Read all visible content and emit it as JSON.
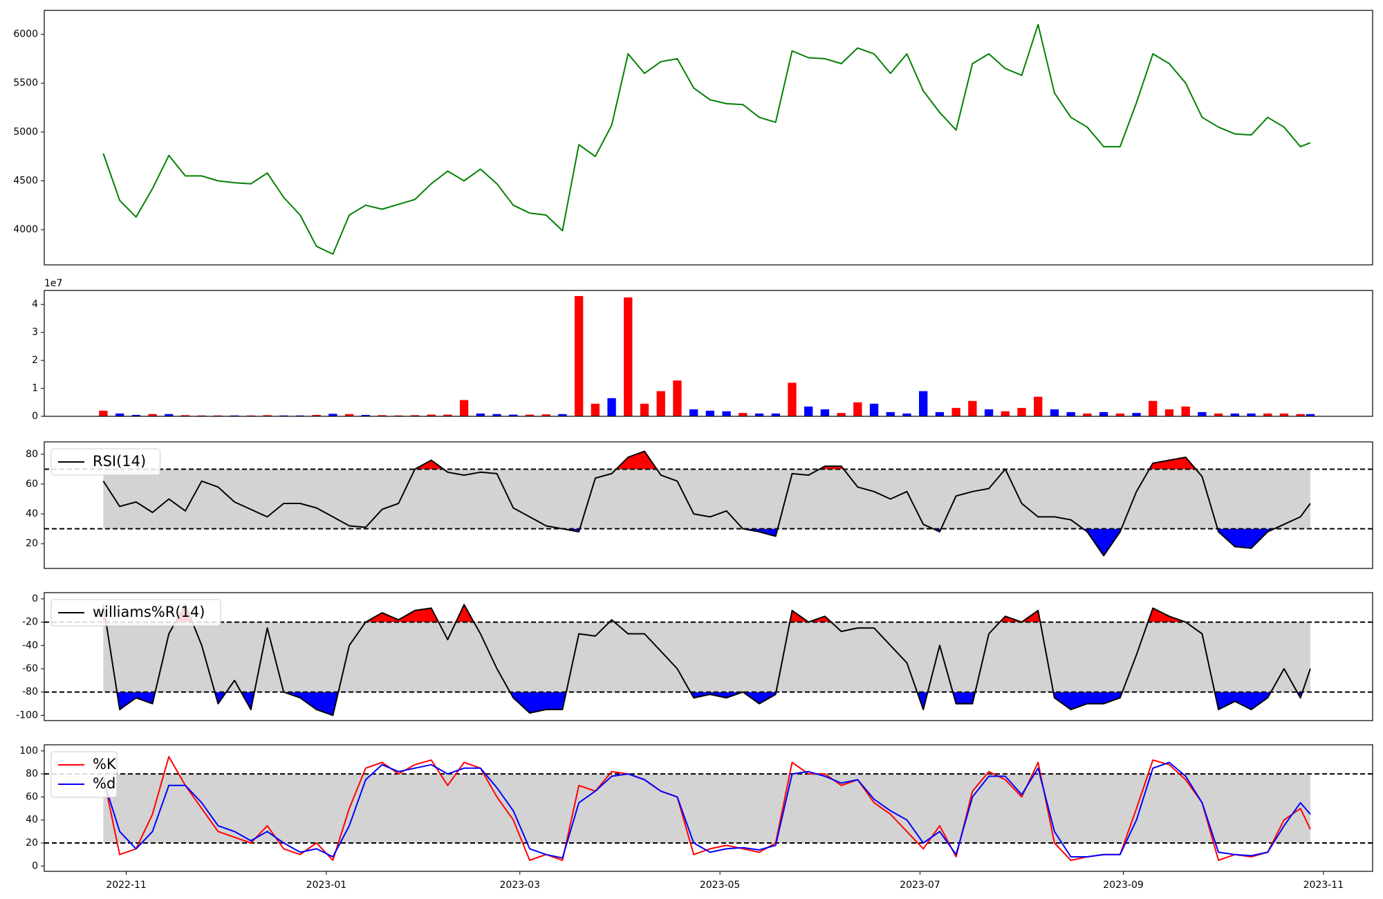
{
  "chart_data": [
    {
      "type": "line",
      "x": [
        19290,
        19295,
        19300,
        19305,
        19310,
        19315,
        19320,
        19325,
        19330,
        19335,
        19340,
        19345,
        19350,
        19355,
        19360,
        19365,
        19370,
        19375,
        19380,
        19385,
        19390,
        19395,
        19400,
        19405,
        19410,
        19415,
        19420,
        19425,
        19430,
        19435,
        19440,
        19445,
        19450,
        19455,
        19460,
        19465,
        19470,
        19475,
        19480,
        19485,
        19490,
        19495,
        19500,
        19505,
        19510,
        19515,
        19520,
        19525,
        19530,
        19535,
        19540,
        19545,
        19550,
        19555,
        19560,
        19565,
        19570,
        19575,
        19580,
        19585,
        19590,
        19595,
        19600,
        19605,
        19610,
        19615,
        19620,
        19625,
        19630,
        19635,
        19640,
        19645,
        19650,
        19655,
        19658
      ],
      "values": [
        4780,
        4300,
        4130,
        4420,
        4760,
        4550,
        4550,
        4500,
        4480,
        4470,
        4580,
        4330,
        4150,
        3830,
        3750,
        4150,
        4250,
        4210,
        4260,
        4310,
        4470,
        4600,
        4500,
        4620,
        4470,
        4250,
        4170,
        4150,
        3990,
        4870,
        4750,
        5070,
        5800,
        5600,
        5720,
        5750,
        5450,
        5330,
        5290,
        5280,
        5150,
        5100,
        5830,
        5760,
        5750,
        5700,
        5860,
        5800,
        5600,
        5800,
        5420,
        5200,
        5020,
        5700,
        5800,
        5650,
        5580,
        6100,
        5400,
        5150,
        5050,
        4850,
        4850,
        5300,
        5800,
        5700,
        5500,
        5150,
        5050,
        4980,
        4970,
        5150,
        5050,
        4850,
        4890
      ],
      "color": "green",
      "xlim": [
        19272,
        19677
      ],
      "ylim": [
        3640,
        6245
      ],
      "yticks": [
        4000,
        4500,
        5000,
        5500,
        6000
      ]
    },
    {
      "type": "bar",
      "x": [
        19290,
        19295,
        19300,
        19305,
        19310,
        19315,
        19320,
        19325,
        19330,
        19335,
        19340,
        19345,
        19350,
        19355,
        19360,
        19365,
        19370,
        19375,
        19380,
        19385,
        19390,
        19395,
        19400,
        19405,
        19410,
        19415,
        19420,
        19425,
        19430,
        19435,
        19440,
        19445,
        19450,
        19455,
        19460,
        19465,
        19470,
        19475,
        19480,
        19485,
        19490,
        19495,
        19500,
        19505,
        19510,
        19515,
        19520,
        19525,
        19530,
        19535,
        19540,
        19545,
        19550,
        19555,
        19560,
        19565,
        19570,
        19575,
        19580,
        19585,
        19590,
        19595,
        19600,
        19605,
        19610,
        19615,
        19620,
        19625,
        19630,
        19635,
        19640,
        19645,
        19650,
        19655,
        19658
      ],
      "values": [
        2000000,
        1000000,
        500000,
        800000,
        800000,
        400000,
        300000,
        300000,
        300000,
        300000,
        400000,
        300000,
        300000,
        500000,
        900000,
        800000,
        500000,
        400000,
        300000,
        400000,
        600000,
        600000,
        5800000,
        1000000,
        800000,
        600000,
        600000,
        700000,
        800000,
        43000000,
        4500000,
        6500000,
        42500000,
        4500000,
        9000000,
        12800000,
        2500000,
        2000000,
        1800000,
        1200000,
        1000000,
        1000000,
        12000000,
        3500000,
        2500000,
        1200000,
        5000000,
        4500000,
        1500000,
        1000000,
        9000000,
        1500000,
        3000000,
        5500000,
        2500000,
        1800000,
        3000000,
        7000000,
        2500000,
        1500000,
        1000000,
        1500000,
        1000000,
        1200000,
        5500000,
        2500000,
        3500000,
        1500000,
        1000000,
        1000000,
        1000000,
        1000000,
        1000000,
        800000,
        800000
      ],
      "colors": [
        "red",
        "blue",
        "blue",
        "red",
        "blue",
        "red",
        "red",
        "red",
        "blue",
        "red",
        "red",
        "blue",
        "blue",
        "red",
        "blue",
        "red",
        "blue",
        "red",
        "red",
        "red",
        "red",
        "red",
        "red",
        "blue",
        "blue",
        "blue",
        "red",
        "red",
        "blue",
        "red",
        "red",
        "blue",
        "red",
        "red",
        "red",
        "red",
        "blue",
        "blue",
        "blue",
        "red",
        "blue",
        "blue",
        "red",
        "blue",
        "blue",
        "red",
        "red",
        "blue",
        "blue",
        "blue",
        "blue",
        "blue",
        "red",
        "red",
        "blue",
        "red",
        "red",
        "red",
        "blue",
        "blue",
        "red",
        "blue",
        "red",
        "blue",
        "red",
        "red",
        "red",
        "blue",
        "red",
        "blue",
        "blue",
        "red",
        "red",
        "red",
        "blue"
      ],
      "xlim": [
        19272,
        19677
      ],
      "ylim": [
        0,
        45000000
      ],
      "yticks": [
        0,
        {
          "value": 10000000,
          "label": "1"
        },
        {
          "value": 20000000,
          "label": "2"
        },
        {
          "value": 30000000,
          "label": "3"
        },
        {
          "value": 40000000,
          "label": "4"
        }
      ],
      "offset_label": "1e7"
    },
    {
      "type": "line",
      "x": [
        19290,
        19295,
        19300,
        19305,
        19310,
        19315,
        19320,
        19325,
        19330,
        19335,
        19340,
        19345,
        19350,
        19355,
        19360,
        19365,
        19370,
        19375,
        19380,
        19385,
        19390,
        19395,
        19400,
        19405,
        19410,
        19415,
        19420,
        19425,
        19430,
        19435,
        19440,
        19445,
        19450,
        19455,
        19460,
        19465,
        19470,
        19475,
        19480,
        19485,
        19490,
        19495,
        19500,
        19505,
        19510,
        19515,
        19520,
        19525,
        19530,
        19535,
        19540,
        19545,
        19550,
        19555,
        19560,
        19565,
        19570,
        19575,
        19580,
        19585,
        19590,
        19595,
        19600,
        19605,
        19610,
        19615,
        19620,
        19625,
        19630,
        19635,
        19640,
        19645,
        19650,
        19655,
        19658
      ],
      "series": [
        {
          "name": "RSI(14)",
          "color": "black",
          "values": [
            62,
            45,
            48,
            41,
            50,
            42,
            62,
            58,
            48,
            43,
            38,
            47,
            47,
            44,
            38,
            32,
            31,
            43,
            47,
            70,
            76,
            68,
            66,
            68,
            67,
            44,
            38,
            32,
            30,
            28,
            64,
            67,
            78,
            82,
            66,
            62,
            40,
            38,
            42,
            30,
            28,
            25,
            67,
            66,
            72,
            72,
            58,
            55,
            50,
            55,
            33,
            28,
            52,
            55,
            57,
            70,
            47,
            38,
            38,
            36,
            28,
            12,
            28,
            55,
            74,
            76,
            78,
            65,
            28,
            18,
            17,
            28,
            33,
            38,
            47
          ]
        }
      ],
      "xlim": [
        19272,
        19677
      ],
      "ylim": [
        3.4,
        88.3
      ],
      "yticks": [
        20,
        40,
        60,
        80
      ],
      "hlines": [
        30,
        70
      ],
      "band_color": "lightgray",
      "above_color": "red",
      "below_color": "blue",
      "legend": "upper left"
    },
    {
      "type": "line",
      "x": [
        19290,
        19295,
        19300,
        19305,
        19310,
        19315,
        19320,
        19325,
        19330,
        19335,
        19340,
        19345,
        19350,
        19355,
        19360,
        19365,
        19370,
        19375,
        19380,
        19385,
        19390,
        19395,
        19400,
        19405,
        19410,
        19415,
        19420,
        19425,
        19430,
        19435,
        19440,
        19445,
        19450,
        19455,
        19460,
        19465,
        19470,
        19475,
        19480,
        19485,
        19490,
        19495,
        19500,
        19505,
        19510,
        19515,
        19520,
        19525,
        19530,
        19535,
        19540,
        19545,
        19550,
        19555,
        19560,
        19565,
        19570,
        19575,
        19580,
        19585,
        19590,
        19595,
        19600,
        19605,
        19610,
        19615,
        19620,
        19625,
        19630,
        19635,
        19640,
        19645,
        19650,
        19655,
        19658
      ],
      "series": [
        {
          "name": "williams%R(14)",
          "color": "black",
          "values": [
            -5,
            -95,
            -85,
            -90,
            -30,
            -5,
            -40,
            -90,
            -70,
            -95,
            -25,
            -80,
            -85,
            -95,
            -100,
            -40,
            -20,
            -12,
            -18,
            -10,
            -8,
            -35,
            -5,
            -30,
            -60,
            -85,
            -98,
            -95,
            -95,
            -30,
            -32,
            -18,
            -30,
            -30,
            -45,
            -60,
            -85,
            -82,
            -85,
            -80,
            -90,
            -82,
            -10,
            -20,
            -15,
            -28,
            -25,
            -25,
            -40,
            -55,
            -95,
            -40,
            -90,
            -90,
            -30,
            -15,
            -20,
            -10,
            -85,
            -95,
            -90,
            -90,
            -85,
            -48,
            -8,
            -15,
            -20,
            -30,
            -95,
            -88,
            -95,
            -85,
            -60,
            -85,
            -60
          ]
        }
      ],
      "xlim": [
        19272,
        19677
      ],
      "ylim": [
        -104.5,
        5.3
      ],
      "yticks": [
        -100,
        -80,
        -60,
        -40,
        -20,
        0
      ],
      "hlines": [
        -80,
        -20
      ],
      "band_color": "lightgray",
      "above_color": "red",
      "below_color": "blue",
      "legend": "upper left"
    },
    {
      "type": "line",
      "x": [
        19290,
        19295,
        19300,
        19305,
        19310,
        19315,
        19320,
        19325,
        19330,
        19335,
        19340,
        19345,
        19350,
        19355,
        19360,
        19365,
        19370,
        19375,
        19380,
        19385,
        19390,
        19395,
        19400,
        19405,
        19410,
        19415,
        19420,
        19425,
        19430,
        19435,
        19440,
        19445,
        19450,
        19455,
        19460,
        19465,
        19470,
        19475,
        19480,
        19485,
        19490,
        19495,
        19500,
        19505,
        19510,
        19515,
        19520,
        19525,
        19530,
        19535,
        19540,
        19545,
        19550,
        19555,
        19560,
        19565,
        19570,
        19575,
        19580,
        19585,
        19590,
        19595,
        19600,
        19605,
        19610,
        19615,
        19620,
        19625,
        19630,
        19635,
        19640,
        19645,
        19650,
        19655,
        19658
      ],
      "series": [
        {
          "name": "%K",
          "color": "red",
          "values": [
            78,
            10,
            15,
            45,
            95,
            70,
            50,
            30,
            25,
            20,
            35,
            15,
            10,
            20,
            5,
            50,
            85,
            90,
            80,
            88,
            92,
            70,
            90,
            85,
            60,
            40,
            5,
            10,
            5,
            70,
            65,
            82,
            80,
            75,
            65,
            60,
            10,
            15,
            18,
            15,
            12,
            20,
            90,
            80,
            80,
            70,
            75,
            55,
            45,
            30,
            15,
            35,
            8,
            65,
            82,
            75,
            60,
            90,
            20,
            5,
            8,
            10,
            10,
            50,
            92,
            88,
            75,
            55,
            5,
            10,
            8,
            12,
            40,
            50,
            32
          ]
        },
        {
          "name": "%d",
          "color": "blue",
          "values": [
            75,
            30,
            15,
            30,
            70,
            70,
            55,
            35,
            30,
            22,
            30,
            20,
            12,
            15,
            8,
            35,
            75,
            88,
            82,
            85,
            88,
            80,
            85,
            85,
            68,
            48,
            15,
            10,
            7,
            55,
            65,
            78,
            80,
            75,
            65,
            60,
            20,
            12,
            15,
            16,
            14,
            18,
            80,
            82,
            78,
            72,
            75,
            58,
            48,
            40,
            20,
            30,
            10,
            60,
            78,
            78,
            62,
            85,
            30,
            8,
            8,
            10,
            10,
            40,
            85,
            90,
            78,
            55,
            12,
            10,
            9,
            12,
            35,
            55,
            45
          ]
        }
      ],
      "xlim": [
        19272,
        19677
      ],
      "ylim": [
        -4.6,
        105.3
      ],
      "yticks": [
        0,
        20,
        40,
        60,
        80,
        100
      ],
      "xticks": [
        {
          "value": 19297,
          "label": "2022-11"
        },
        {
          "value": 19358,
          "label": "2023-01"
        },
        {
          "value": 19417,
          "label": "2023-03"
        },
        {
          "value": 19478,
          "label": "2023-05"
        },
        {
          "value": 19539,
          "label": "2023-07"
        },
        {
          "value": 19601,
          "label": "2023-09"
        },
        {
          "value": 19662,
          "label": "2023-11"
        }
      ],
      "hlines": [
        20,
        80
      ],
      "band_color": "lightgray",
      "legend": "upper left"
    }
  ]
}
